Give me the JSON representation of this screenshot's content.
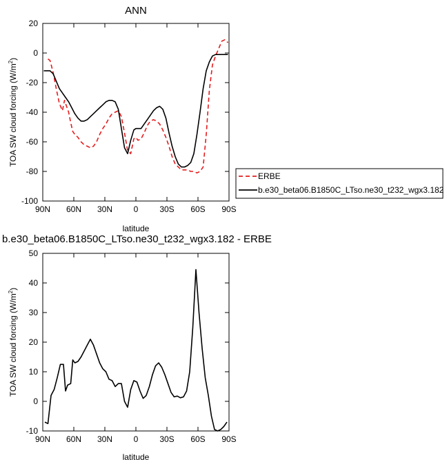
{
  "chart_data": [
    {
      "type": "line",
      "title": "ANN",
      "xlabel": "latitude",
      "ylabel": "TOA SW cloud forcing (W/m",
      "ylabel_sup": "2",
      "ylabel_close": ")",
      "xlim": [
        90,
        -90
      ],
      "ylim": [
        -100,
        20
      ],
      "xticks": [
        {
          "value": 90,
          "label": "90N"
        },
        {
          "value": 60,
          "label": "60N"
        },
        {
          "value": 30,
          "label": "30N"
        },
        {
          "value": 0,
          "label": "0"
        },
        {
          "value": -30,
          "label": "30S"
        },
        {
          "value": -60,
          "label": "60S"
        },
        {
          "value": -90,
          "label": "90S"
        }
      ],
      "yticks": [
        {
          "value": 20,
          "label": "20"
        },
        {
          "value": 0,
          "label": "0"
        },
        {
          "value": -20,
          "label": "-20"
        },
        {
          "value": -40,
          "label": "-40"
        },
        {
          "value": -60,
          "label": "-60"
        },
        {
          "value": -80,
          "label": "-80"
        },
        {
          "value": -100,
          "label": "-100"
        }
      ],
      "legend_position": "right",
      "series": [
        {
          "name": "ERBE",
          "color": "#e41a1c",
          "dash": true,
          "x": [
            85,
            83,
            80,
            77,
            74,
            71,
            69,
            67,
            65,
            63,
            61,
            59,
            56,
            53,
            50,
            47,
            44,
            41,
            38,
            35,
            32,
            29,
            26,
            23,
            20,
            17,
            14,
            11,
            8,
            5,
            2,
            0,
            -2,
            -5,
            -8,
            -11,
            -14,
            -17,
            -20,
            -23,
            -26,
            -29,
            -32,
            -35,
            -38,
            -41,
            -44,
            -47,
            -50,
            -53,
            -56,
            -59,
            -62,
            -65,
            -68,
            -71,
            -74,
            -77,
            -80,
            -83,
            -86,
            -89
          ],
          "y": [
            -4,
            -5,
            -13,
            -24,
            -34,
            -39,
            -32,
            -36,
            -40,
            -47,
            -53,
            -55,
            -57,
            -60,
            -62,
            -63,
            -64,
            -63,
            -60,
            -55,
            -51,
            -48,
            -44,
            -41,
            -40,
            -39,
            -43,
            -54,
            -66,
            -68,
            -58,
            -57,
            -59,
            -58,
            -54,
            -49,
            -46,
            -45,
            -46,
            -48,
            -52,
            -57,
            -63,
            -70,
            -75,
            -77,
            -79,
            -79,
            -79,
            -80,
            -80,
            -81,
            -80,
            -77,
            -55,
            -25,
            -8,
            -2,
            3,
            8,
            9,
            7
          ]
        },
        {
          "name": "b.e30_beta06.B1850C_LTso.ne30_t232_wgx3.182",
          "color": "#000000",
          "dash": false,
          "x": [
            89,
            86,
            83,
            80,
            77,
            74,
            71,
            68,
            65,
            62,
            59,
            56,
            53,
            50,
            47,
            44,
            41,
            38,
            35,
            32,
            29,
            26,
            23,
            20,
            17,
            14,
            11,
            8,
            5,
            2,
            0,
            -2,
            -5,
            -8,
            -11,
            -14,
            -17,
            -20,
            -23,
            -26,
            -29,
            -32,
            -35,
            -38,
            -41,
            -44,
            -47,
            -50,
            -53,
            -56,
            -59,
            -62,
            -65,
            -68,
            -71,
            -74,
            -77,
            -80,
            -83,
            -86,
            -89
          ],
          "y": [
            -12,
            -12,
            -12,
            -14,
            -19,
            -24,
            -27,
            -30,
            -33,
            -37,
            -41,
            -44,
            -46,
            -46,
            -45,
            -43,
            -41,
            -39,
            -37,
            -35,
            -33,
            -32,
            -32,
            -33,
            -38,
            -51,
            -64,
            -68,
            -59,
            -52,
            -51,
            -51,
            -51,
            -48,
            -45,
            -42,
            -39,
            -37,
            -36,
            -38,
            -44,
            -54,
            -63,
            -70,
            -75,
            -77,
            -77,
            -76,
            -74,
            -68,
            -55,
            -40,
            -24,
            -12,
            -6,
            -2,
            -1,
            -1,
            -1,
            -1,
            -1
          ]
        }
      ]
    },
    {
      "type": "line",
      "title": "b.e30_beta06.B1850C_LTso.ne30_t232_wgx3.182 - ERBE",
      "xlabel": "latitude",
      "ylabel": "TOA SW cloud forcing (W/m",
      "ylabel_sup": "2",
      "ylabel_close": ")",
      "xlim": [
        90,
        -90
      ],
      "ylim": [
        -10,
        50
      ],
      "xticks": [
        {
          "value": 90,
          "label": "90N"
        },
        {
          "value": 60,
          "label": "60N"
        },
        {
          "value": 30,
          "label": "30N"
        },
        {
          "value": 0,
          "label": "0"
        },
        {
          "value": -30,
          "label": "30S"
        },
        {
          "value": -60,
          "label": "60S"
        },
        {
          "value": -90,
          "label": "90S"
        }
      ],
      "yticks": [
        {
          "value": 50,
          "label": "50"
        },
        {
          "value": 40,
          "label": "40"
        },
        {
          "value": 30,
          "label": "30"
        },
        {
          "value": 20,
          "label": "20"
        },
        {
          "value": 10,
          "label": "10"
        },
        {
          "value": 0,
          "label": "0"
        },
        {
          "value": -10,
          "label": "-10"
        }
      ],
      "series": [
        {
          "color": "#000000",
          "dash": false,
          "x": [
            88,
            85,
            82,
            79,
            76,
            73,
            70,
            68,
            66,
            63,
            61,
            59,
            56,
            53,
            50,
            47,
            44,
            41,
            38,
            35,
            32,
            29,
            26,
            23,
            20,
            17,
            14,
            11,
            8,
            5,
            2,
            -1,
            -4,
            -7,
            -10,
            -13,
            -16,
            -19,
            -22,
            -25,
            -28,
            -31,
            -34,
            -37,
            -40,
            -43,
            -46,
            -49,
            -52,
            -55,
            -58,
            -61,
            -64,
            -67,
            -70,
            -73,
            -76,
            -79,
            -82,
            -85,
            -88
          ],
          "y": [
            -7,
            -7.5,
            2,
            4,
            8,
            12.5,
            12.5,
            3.5,
            5.5,
            6,
            14,
            13,
            13.5,
            15,
            17,
            19,
            21,
            19,
            16,
            13,
            11,
            10,
            7.5,
            7,
            5,
            6,
            6,
            0,
            -2,
            4,
            7,
            6.5,
            3.5,
            1,
            2,
            5,
            9,
            12,
            13,
            11.5,
            9,
            6,
            3,
            1.5,
            1.8,
            1.2,
            1.5,
            3.5,
            10,
            25,
            44.5,
            30,
            18,
            8,
            2,
            -5,
            -9.5,
            -10,
            -9.5,
            -8.5,
            -7
          ]
        }
      ]
    }
  ]
}
